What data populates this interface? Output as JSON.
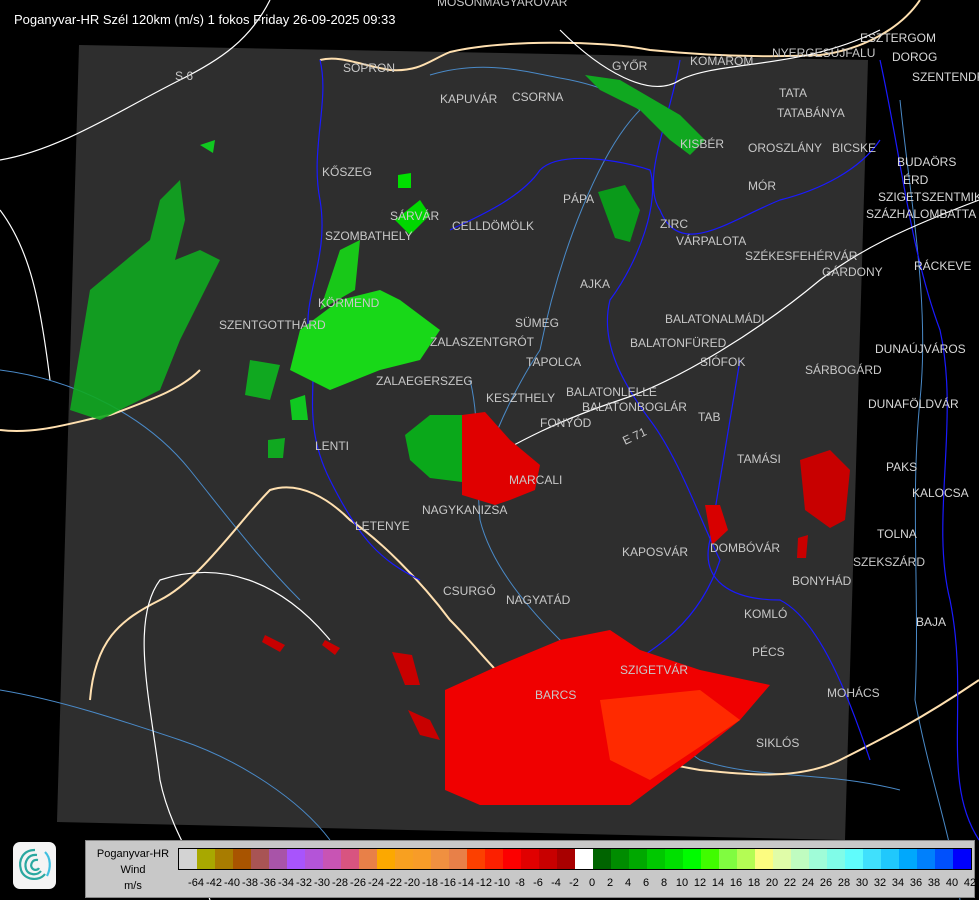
{
  "title": "Poganyvar-HR Szél 120km (m/s) 1 fokos Friday 26-09-2025 09:33",
  "map": {
    "road_labels": [
      "S 6",
      "E 71"
    ],
    "cities": [
      "MOSONMAGYARÓVÁR",
      "SOPRON",
      "KAPUVÁR",
      "CSORNA",
      "GYŐR",
      "KOMÁROM",
      "ESZTERGOM",
      "NYERGESÚJFALU",
      "DOROG",
      "SZENTENDRE",
      "TATA",
      "TATABÁNYA",
      "KISBÉR",
      "OROSZLÁNY",
      "BICSKE",
      "BUDAÖRS",
      "ÉRD",
      "SZIGETSZENTMIKLÓS",
      "SZÁZHALOMBATTA",
      "MÓR",
      "RÁCKEVE",
      "PÁPA",
      "ZIRC",
      "VÁRPALOTA",
      "SZÉKESFEHÉRVÁR",
      "GÁRDONY",
      "KŐSZEG",
      "SZOMBATHELY",
      "SÁRVÁR",
      "CELLDÖMÖLK",
      "AJKA",
      "KÖRMEND",
      "SZENTGOTTHÁRD",
      "SÜMEG",
      "ZALASZENTGRÓT",
      "BALATONALMÁDI",
      "BALATONFÜRED",
      "SIÓFOK",
      "TAPOLCA",
      "ZALAEGERSZEG",
      "DUNAÚJVÁROS",
      "SÁRBOGÁRD",
      "KESZTHELY",
      "BALATONLELLE",
      "BALATONBOGLÁR",
      "FONYÓD",
      "TAB",
      "DUNAFÖLDVÁR",
      "LENTI",
      "TAMÁSI",
      "PAKS",
      "MARCALI",
      "KALOCSA",
      "NAGYKANIZSA",
      "LETENYE",
      "TOLNA",
      "KAPOSVÁR",
      "DOMBÓVÁR",
      "SZEKSZÁRD",
      "BONYHÁD",
      "CSURGÓ",
      "NAGYATÁD",
      "KOMLÓ",
      "BAJA",
      "PÉCS",
      "SZIGETVÁR",
      "BARCS",
      "MOHÁCS",
      "SIKLÓS"
    ],
    "colors": {
      "background": "#000000",
      "coverage": "#2e2e2e",
      "border": "#ffe0b0",
      "county": "#0000ff",
      "river": "#4a8ac8",
      "road": "#ffffff",
      "city": "#c8c8c8"
    }
  },
  "legend": {
    "station": "Poganyvar-HR",
    "quantity": "Wind",
    "unit": "m/s",
    "labels": [
      "-64",
      "-42",
      "-40",
      "-38",
      "-36",
      "-34",
      "-32",
      "-30",
      "-28",
      "-26",
      "-24",
      "-22",
      "-20",
      "-18",
      "-16",
      "-14",
      "-12",
      "-10",
      "-8",
      "-6",
      "-4",
      "-2",
      "0",
      "2",
      "4",
      "6",
      "8",
      "10",
      "12",
      "14",
      "16",
      "18",
      "20",
      "22",
      "24",
      "26",
      "28",
      "30",
      "32",
      "34",
      "36",
      "38",
      "40",
      "42"
    ],
    "colors": [
      "#d3d3d3",
      "#a8a800",
      "#a87c00",
      "#a85400",
      "#a85454",
      "#a854a8",
      "#a854fc",
      "#b454d8",
      "#c854b4",
      "#d85480",
      "#e88048",
      "#fca800",
      "#f8a020",
      "#f89c28",
      "#f09040",
      "#e88048",
      "#fc4000",
      "#fc2000",
      "#fc0000",
      "#e00000",
      "#c80000",
      "#a80000",
      "#ffffff",
      "#006400",
      "#008c00",
      "#00a800",
      "#00c800",
      "#00e000",
      "#00fc00",
      "#40fc00",
      "#80fc40",
      "#b4fc54",
      "#fcfc80",
      "#e0fca8",
      "#c0fcc0",
      "#a0fcd8",
      "#80fce8",
      "#60fcfc",
      "#40e0fc",
      "#20c8fc",
      "#00a8fc",
      "#0080fc",
      "#0050fc",
      "#0000fc"
    ]
  }
}
